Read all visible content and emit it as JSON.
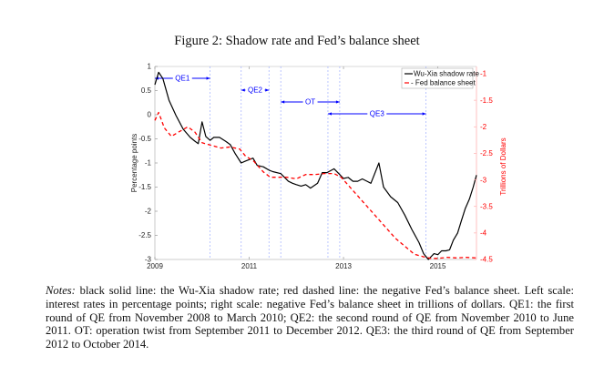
{
  "figure": {
    "title": "Figure 2: Shadow rate and Fed’s balance sheet"
  },
  "chart_data": {
    "type": "line",
    "title": "Figure 2: Shadow rate and Fed’s balance sheet",
    "xlabel": "",
    "ylabel": "Percentage points",
    "ylabel_right": "Trillions of Dollars",
    "xlim": [
      2009,
      2015.82
    ],
    "ylim": [
      -3,
      1
    ],
    "ylim_right": [
      -4.5,
      -0.85
    ],
    "x_ticks": [
      "2009",
      "2011",
      "2013",
      "2015"
    ],
    "x_tick_values": [
      2009,
      2011,
      2013,
      2015
    ],
    "y_ticks": [
      "1",
      "0.5",
      "0",
      "-0.5",
      "-1",
      "-1.5",
      "-2",
      "-2.5",
      "-3"
    ],
    "y_tick_values": [
      1,
      0.5,
      0,
      -0.5,
      -1,
      -1.5,
      -2,
      -2.5,
      -3
    ],
    "y_ticks_right": [
      "-1",
      "-1.5",
      "-2",
      "-2.5",
      "-3",
      "-3.5",
      "-4",
      "-4.5"
    ],
    "y_tick_values_right": [
      -1,
      -1.5,
      -2,
      -2.5,
      -3,
      -3.5,
      -4,
      -4.5
    ],
    "grid": false,
    "legend_position": "top-right",
    "colors": {
      "shadow": "#000000",
      "balance": "#ff0000",
      "events": "#0000ff",
      "right_axis": "#ff0000"
    },
    "series": [
      {
        "name": "Wu-Xia shadow rate",
        "axis": "left",
        "style": "solid",
        "x": [
          2009.0,
          2009.08,
          2009.17,
          2009.3,
          2009.45,
          2009.6,
          2009.75,
          2009.85,
          2009.92,
          2010.0,
          2010.08,
          2010.17,
          2010.25,
          2010.37,
          2010.5,
          2010.6,
          2010.7,
          2010.83,
          2010.92,
          2011.08,
          2011.17,
          2011.3,
          2011.42,
          2011.5,
          2011.67,
          2011.83,
          2011.92,
          2012.0,
          2012.1,
          2012.2,
          2012.3,
          2012.45,
          2012.55,
          2012.65,
          2012.8,
          2012.9,
          2013.0,
          2013.1,
          2013.2,
          2013.3,
          2013.4,
          2013.5,
          2013.58,
          2013.75,
          2013.85,
          2014.0,
          2014.15,
          2014.3,
          2014.45,
          2014.6,
          2014.7,
          2014.8,
          2014.92,
          2015.0,
          2015.08,
          2015.17,
          2015.25,
          2015.33,
          2015.42,
          2015.5,
          2015.58,
          2015.67,
          2015.75,
          2015.82
        ],
        "values": [
          0.62,
          0.88,
          0.75,
          0.3,
          -0.02,
          -0.3,
          -0.47,
          -0.55,
          -0.6,
          -0.15,
          -0.45,
          -0.53,
          -0.47,
          -0.47,
          -0.55,
          -0.62,
          -0.8,
          -1.0,
          -0.96,
          -0.9,
          -1.05,
          -1.08,
          -1.15,
          -1.18,
          -1.22,
          -1.38,
          -1.42,
          -1.45,
          -1.48,
          -1.45,
          -1.52,
          -1.42,
          -1.2,
          -1.2,
          -1.12,
          -1.22,
          -1.32,
          -1.3,
          -1.38,
          -1.38,
          -1.33,
          -1.38,
          -1.42,
          -1.0,
          -1.5,
          -1.7,
          -1.82,
          -2.08,
          -2.38,
          -2.65,
          -2.88,
          -3.0,
          -2.88,
          -2.9,
          -2.82,
          -2.82,
          -2.8,
          -2.6,
          -2.45,
          -2.2,
          -1.95,
          -1.75,
          -1.5,
          -1.25
        ]
      },
      {
        "name": "Fed balance sheet",
        "axis": "right",
        "style": "dashed",
        "x": [
          2009.0,
          2009.08,
          2009.2,
          2009.35,
          2009.5,
          2009.7,
          2009.85,
          2010.0,
          2010.2,
          2010.4,
          2010.6,
          2010.8,
          2010.92,
          2011.1,
          2011.3,
          2011.45,
          2011.6,
          2011.8,
          2012.0,
          2012.2,
          2012.4,
          2012.6,
          2012.8,
          2012.95,
          2013.1,
          2013.3,
          2013.5,
          2013.7,
          2013.9,
          2014.1,
          2014.3,
          2014.5,
          2014.7,
          2014.85,
          2015.0,
          2015.2,
          2015.4,
          2015.6,
          2015.82
        ],
        "values": [
          -1.88,
          -1.73,
          -2.02,
          -2.18,
          -2.1,
          -2.0,
          -2.1,
          -2.3,
          -2.35,
          -2.4,
          -2.38,
          -2.42,
          -2.55,
          -2.65,
          -2.85,
          -2.95,
          -2.95,
          -2.95,
          -2.98,
          -2.9,
          -2.9,
          -2.88,
          -2.88,
          -2.95,
          -3.1,
          -3.3,
          -3.5,
          -3.7,
          -3.9,
          -4.1,
          -4.25,
          -4.4,
          -4.45,
          -4.48,
          -4.48,
          -4.46,
          -4.47,
          -4.46,
          -4.47
        ]
      }
    ],
    "event_lines": [
      2010.17,
      2010.83,
      2011.42,
      2011.67,
      2012.67,
      2012.92,
      2014.75
    ],
    "annotations": [
      {
        "label": "QE1",
        "from": 2009.0,
        "to": 2010.17,
        "level": 0.75
      },
      {
        "label": "QE2",
        "from": 2010.83,
        "to": 2011.42,
        "level": 0.5
      },
      {
        "label": "OT",
        "from": 2011.67,
        "to": 2012.92,
        "level": 0.25
      },
      {
        "label": "QE3",
        "from": 2012.67,
        "to": 2014.75,
        "level": 0.0
      }
    ],
    "legend": [
      "Wu-Xia shadow rate",
      "- Fed balance sheet"
    ]
  },
  "notes": {
    "label": "Notes:",
    "text": " black solid line: the Wu-Xia shadow rate; red dashed line: the negative Fed’s balance sheet. Left scale: interest rates in percentage points; right scale: negative Fed’s balance sheet in trillions of dollars. QE1: the first round of QE from November 2008 to March 2010; QE2: the second round of QE from November 2010 to June 2011. OT: operation twist from September 2011 to December 2012. QE3: the third round of QE from September 2012 to October 2014."
  }
}
